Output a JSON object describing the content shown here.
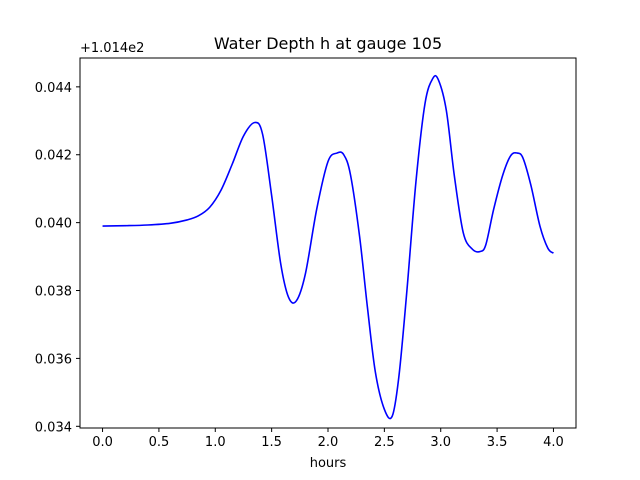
{
  "chart_data": {
    "type": "line",
    "title": "Water Depth h at gauge 105",
    "xlabel": "hours",
    "ylabel": "",
    "y_offset_label": "+1.014e2",
    "xlim": [
      -0.2,
      4.2
    ],
    "ylim": [
      0.03395,
      0.04485
    ],
    "x_ticks": [
      0.0,
      0.5,
      1.0,
      1.5,
      2.0,
      2.5,
      3.0,
      3.5,
      4.0
    ],
    "x_tick_labels": [
      "0.0",
      "0.5",
      "1.0",
      "1.5",
      "2.0",
      "2.5",
      "3.0",
      "3.5",
      "4.0"
    ],
    "y_ticks": [
      0.034,
      0.036,
      0.038,
      0.04,
      0.042,
      0.044
    ],
    "y_tick_labels": [
      "0.034",
      "0.036",
      "0.038",
      "0.040",
      "0.042",
      "0.044"
    ],
    "grid": false,
    "series": [
      {
        "color": "#0000ff",
        "x": [
          0.0,
          0.2,
          0.4,
          0.6,
          0.75,
          0.85,
          0.95,
          1.05,
          1.15,
          1.25,
          1.35,
          1.42,
          1.5,
          1.58,
          1.65,
          1.72,
          1.8,
          1.9,
          2.0,
          2.08,
          2.14,
          2.2,
          2.28,
          2.35,
          2.42,
          2.5,
          2.57,
          2.63,
          2.7,
          2.78,
          2.86,
          2.93,
          2.98,
          3.05,
          3.12,
          3.2,
          3.28,
          3.35,
          3.4,
          3.47,
          3.55,
          3.62,
          3.68,
          3.73,
          3.8,
          3.88,
          3.95,
          4.0
        ],
        "y": [
          0.0399,
          0.03991,
          0.03993,
          0.03998,
          0.04008,
          0.0402,
          0.04045,
          0.04095,
          0.04172,
          0.04255,
          0.04295,
          0.0426,
          0.0408,
          0.0388,
          0.0378,
          0.0377,
          0.0385,
          0.0404,
          0.0418,
          0.04205,
          0.042,
          0.0414,
          0.0396,
          0.0375,
          0.0356,
          0.0345,
          0.0343,
          0.0355,
          0.038,
          0.0412,
          0.0435,
          0.04425,
          0.0442,
          0.0433,
          0.0414,
          0.0397,
          0.03922,
          0.03915,
          0.03935,
          0.0404,
          0.0414,
          0.04197,
          0.04205,
          0.0419,
          0.0411,
          0.0399,
          0.03925,
          0.0391
        ]
      }
    ]
  }
}
